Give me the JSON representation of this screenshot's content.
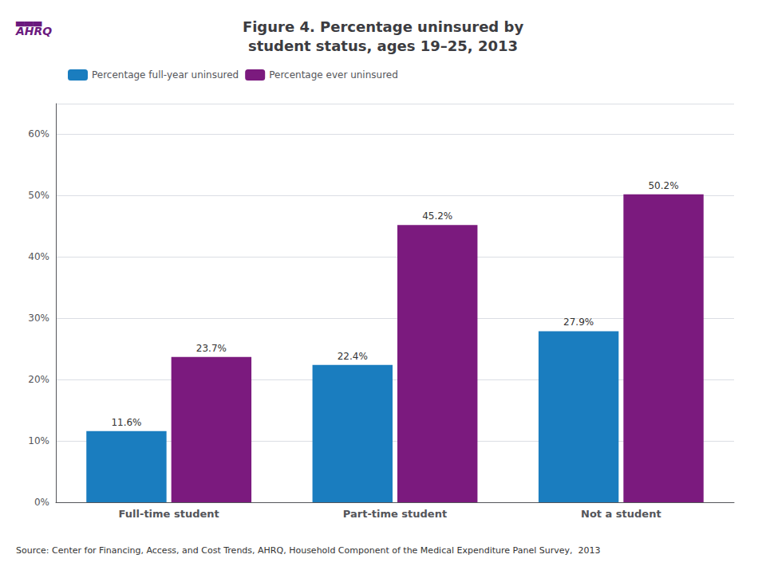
{
  "chart_data": {
    "type": "bar",
    "title": "Figure 4. Percentage uninsured by\nstudent status, ages 19–25, 2013",
    "categories": [
      "Full-time student",
      "Part-time student",
      "Not a student"
    ],
    "series": [
      {
        "name": "Percentage full-year uninsured",
        "color": "#1a7dbf",
        "values": [
          11.6,
          22.4,
          27.9
        ],
        "value_labels": [
          "11.6%",
          "22.4%",
          "27.9%"
        ]
      },
      {
        "name": "Percentage ever uninsured",
        "color": "#7b1a7e",
        "values": [
          23.7,
          45.2,
          50.2
        ],
        "value_labels": [
          "23.7%",
          "45.2%",
          "50.2%"
        ]
      }
    ],
    "ylim": [
      0,
      65
    ],
    "yticks": [
      {
        "value": 0,
        "label": "0%"
      },
      {
        "value": 10,
        "label": "10%"
      },
      {
        "value": 20,
        "label": "20%"
      },
      {
        "value": 30,
        "label": "30%"
      },
      {
        "value": 40,
        "label": "40%"
      },
      {
        "value": 50,
        "label": "50%"
      },
      {
        "value": 60,
        "label": "60%"
      }
    ],
    "grid": true,
    "legend": "upper left",
    "data_labels": true,
    "annotations": [
      "▃▃▃\nAHRQ",
      "Source: Center for Financing, Access, and Cost Trends, AHRQ, Household Component of the Medical Expenditure Panel Survey,  2013"
    ]
  }
}
